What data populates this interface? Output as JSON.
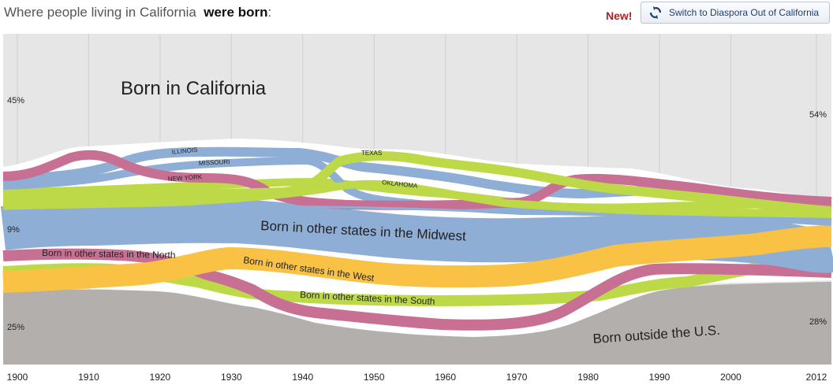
{
  "header": {
    "title_prefix": "Where people living in California",
    "title_bold": "were born",
    "title_suffix": ":",
    "new_badge": "New!",
    "switch_button_label": "Switch to Diaspora Out of California",
    "switch_icon": "refresh-icon"
  },
  "colors": {
    "california": "#dcdcdc",
    "midwest": "#8eaed6",
    "west": "#f9c244",
    "south": "#bed948",
    "northeast": "#c87093",
    "outside_us": "#b3afad",
    "background": "#e6e6e6"
  },
  "chart_data": {
    "type": "area",
    "style": "stacked stream graph of birthplace shares",
    "x_ticks": [
      "1900",
      "1910",
      "1920",
      "1930",
      "1940",
      "1950",
      "1960",
      "1970",
      "1980",
      "1990",
      "2000",
      "2012"
    ],
    "left_axis_labels": [
      "45%",
      "9%",
      "25%"
    ],
    "right_axis_labels": [
      "54%",
      "28%"
    ],
    "annotations": {
      "california": "Born in California",
      "midwest": "Born in other states in the Midwest",
      "west": "Born in other states in the West",
      "south": "Born in other states in the South",
      "northeast": "Born in other states in the North",
      "outside_us": "Born outside the U.S."
    },
    "state_labels": [
      "ILLINOIS",
      "MISSOURI",
      "NEW YORK",
      "TEXAS",
      "OKLAHOMA"
    ],
    "series": [
      {
        "name": "Born in California",
        "values": [
          45,
          null,
          null,
          null,
          null,
          null,
          null,
          null,
          null,
          null,
          null,
          54
        ]
      },
      {
        "name": "Born in other states in the Midwest",
        "values": [
          9,
          null,
          null,
          null,
          null,
          null,
          null,
          null,
          null,
          null,
          null,
          null
        ]
      },
      {
        "name": "Born outside the U.S.",
        "values": [
          25,
          null,
          null,
          null,
          null,
          null,
          null,
          null,
          null,
          null,
          null,
          28
        ]
      }
    ],
    "legend": "none",
    "grid": true
  }
}
